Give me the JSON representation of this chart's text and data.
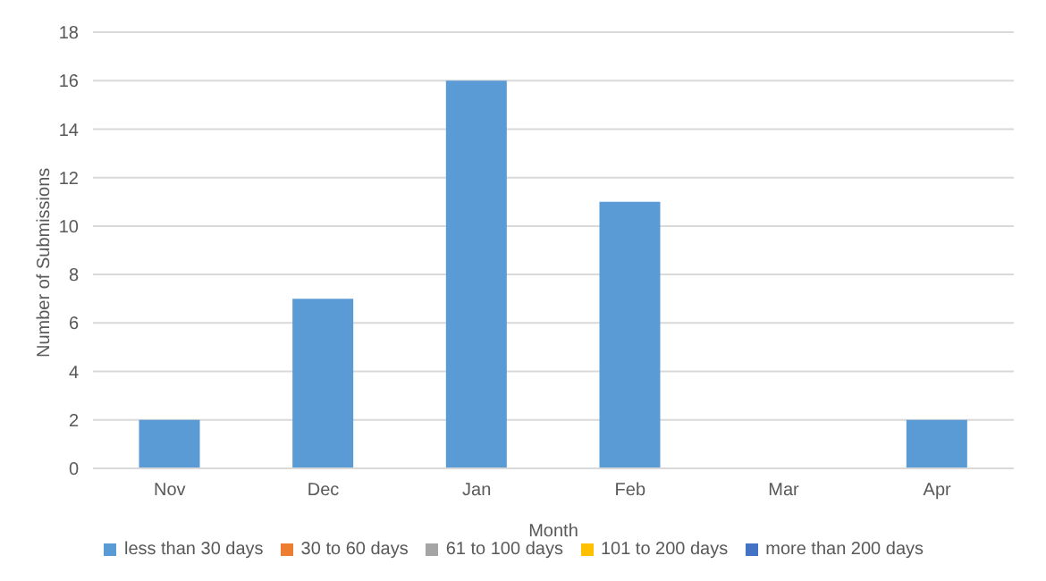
{
  "chart_data": {
    "type": "bar",
    "stacked": true,
    "xlabel": "Month",
    "ylabel": "Number of Submissions",
    "categories": [
      "Nov",
      "Dec",
      "Jan",
      "Feb",
      "Mar",
      "Apr"
    ],
    "series": [
      {
        "name": "less than 30 days",
        "color": "#5b9bd5",
        "values": [
          2,
          7,
          16,
          11,
          0,
          2
        ]
      },
      {
        "name": "30 to 60 days",
        "color": "#ed7d31",
        "values": [
          null,
          null,
          null,
          null,
          null,
          null
        ]
      },
      {
        "name": "61 to 100 days",
        "color": "#a5a5a5",
        "values": [
          null,
          null,
          null,
          null,
          null,
          null
        ]
      },
      {
        "name": "101 to 200 days",
        "color": "#ffc000",
        "values": [
          null,
          null,
          null,
          null,
          null,
          null
        ]
      },
      {
        "name": "more than 200 days",
        "color": "#4472c4",
        "values": [
          null,
          null,
          null,
          null,
          null,
          null
        ]
      }
    ],
    "ylim": [
      0,
      18
    ],
    "yticks": [
      0,
      2,
      4,
      6,
      8,
      10,
      12,
      14,
      16,
      18
    ],
    "grid": "y",
    "legend": "bottom"
  }
}
